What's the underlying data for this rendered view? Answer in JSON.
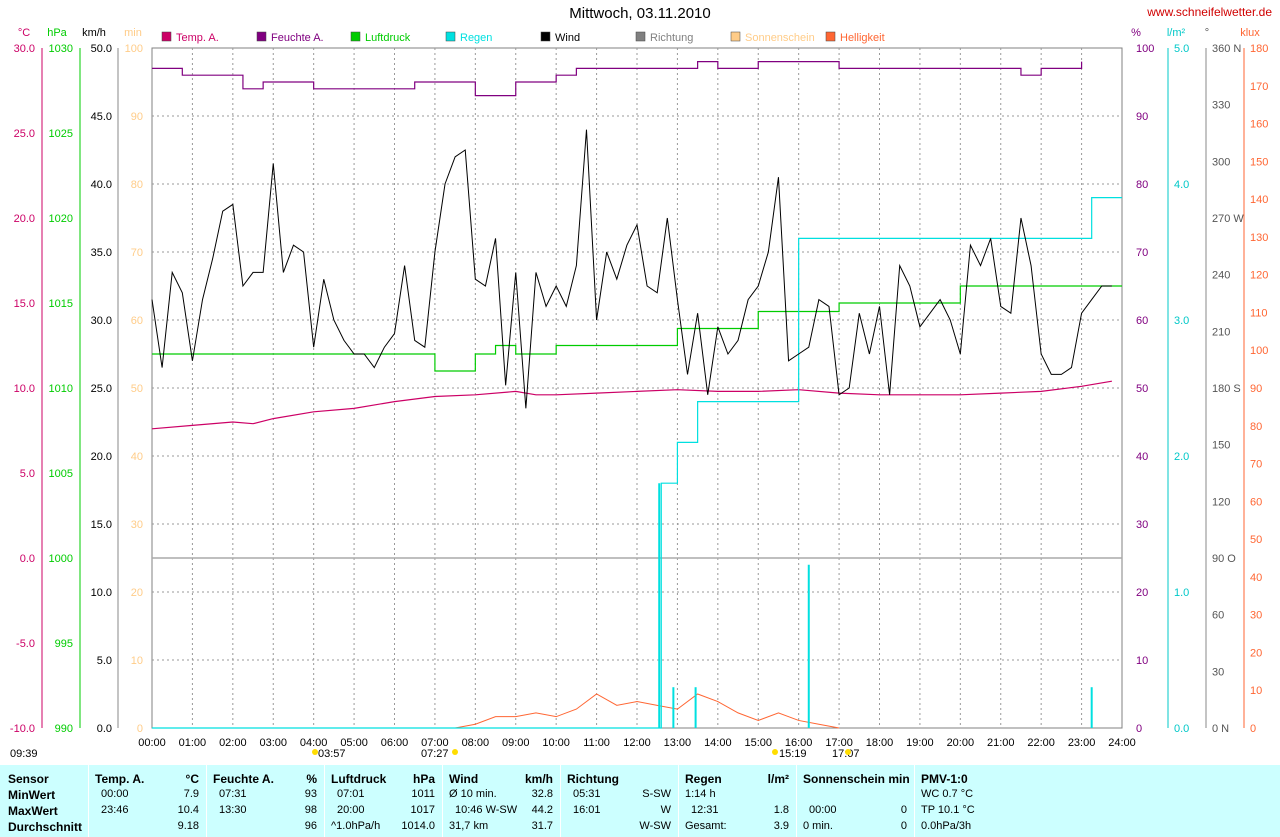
{
  "title": "Mittwoch, 03.11.2010",
  "website": "www.schneifelwetter.de",
  "colors": {
    "temp": "#cc0066",
    "feuchte": "#800080",
    "luftdruck": "#00cc00",
    "regen": "#00e0e0",
    "wind": "#000000",
    "richtung": "#808080",
    "sonnenschein": "#ffcc88",
    "helligkeit": "#ff6633"
  },
  "units_left": {
    "temp": "°C",
    "hpa": "hPa",
    "kmh": "km/h",
    "min": "min"
  },
  "units_right": {
    "pct": "%",
    "lm2": "l/m²",
    "deg": "°",
    "klux": "klux"
  },
  "legend": [
    {
      "label": "Temp. A.",
      "color": "#cc0066"
    },
    {
      "label": "Feuchte A.",
      "color": "#800080"
    },
    {
      "label": "Luftdruck",
      "color": "#00cc00"
    },
    {
      "label": "Regen",
      "color": "#00e0e0"
    },
    {
      "label": "Wind",
      "color": "#000000"
    },
    {
      "label": "Richtung",
      "color": "#808080"
    },
    {
      "label": "Sonnenschein",
      "color": "#ffcc88"
    },
    {
      "label": "Helligkeit",
      "color": "#ff6633"
    }
  ],
  "axes": {
    "temp": [
      "30.0",
      "25.0",
      "20.0",
      "15.0",
      "10.0",
      "5.0",
      "0.0",
      "-5.0",
      "-10.0"
    ],
    "hpa": [
      "1030",
      "1025",
      "1020",
      "1015",
      "1010",
      "1005",
      "1000",
      "995",
      "990"
    ],
    "kmh": [
      "50.0",
      "45.0",
      "40.0",
      "35.0",
      "30.0",
      "25.0",
      "20.0",
      "15.0",
      "10.0",
      "5.0",
      "0.0"
    ],
    "min": [
      "100",
      "90",
      "80",
      "70",
      "60",
      "50",
      "40",
      "30",
      "20",
      "10",
      "0"
    ],
    "pct": [
      "100",
      "90",
      "80",
      "70",
      "60",
      "50",
      "40",
      "30",
      "20",
      "10",
      "0"
    ],
    "lm2": [
      "5.0",
      "4.0",
      "3.0",
      "2.0",
      "1.0",
      "0.0"
    ],
    "deg": [
      "360 N",
      "330",
      "300",
      "270 W",
      "240",
      "210",
      "180 S",
      "150",
      "120",
      "90 O",
      "60",
      "30",
      "0 N"
    ],
    "klux": [
      "180",
      "170",
      "160",
      "150",
      "140",
      "130",
      "120",
      "110",
      "100",
      "90",
      "80",
      "70",
      "60",
      "50",
      "40",
      "30",
      "20",
      "10",
      "0"
    ],
    "x": [
      "00:00",
      "01:00",
      "02:00",
      "03:00",
      "04:00",
      "05:00",
      "06:00",
      "07:00",
      "08:00",
      "09:00",
      "10:00",
      "11:00",
      "12:00",
      "13:00",
      "14:00",
      "15:00",
      "16:00",
      "17:00",
      "18:00",
      "19:00",
      "20:00",
      "21:00",
      "22:00",
      "23:00",
      "24:00"
    ]
  },
  "markers": {
    "left_time": "09:39",
    "m1": "03:57",
    "m2": "07:27",
    "m3": "15:19",
    "m4": "17:07"
  },
  "chart_data": {
    "type": "line",
    "x_unit": "hour",
    "series": [
      {
        "name": "Temp. A.",
        "unit": "°C",
        "x": [
          0,
          1,
          2,
          2.5,
          3,
          4,
          5,
          6,
          7,
          8,
          9,
          9.5,
          10,
          11,
          12,
          13,
          14,
          15,
          16,
          17,
          18,
          19,
          20,
          21,
          22,
          23,
          23.75
        ],
        "values": [
          7.6,
          7.8,
          8.0,
          7.9,
          8.2,
          8.6,
          8.8,
          9.2,
          9.5,
          9.6,
          9.8,
          9.6,
          9.6,
          9.7,
          9.8,
          9.9,
          9.8,
          9.8,
          9.9,
          9.7,
          9.6,
          9.6,
          9.6,
          9.7,
          9.8,
          10.1,
          10.4
        ]
      },
      {
        "name": "Feuchte A.",
        "unit": "%",
        "x": [
          0,
          0.75,
          1.5,
          2.25,
          2.75,
          3.5,
          4,
          5,
          6,
          6.5,
          7.5,
          8,
          8.5,
          9,
          10,
          10.5,
          11,
          12,
          13,
          13.5,
          14,
          15,
          16,
          17,
          18,
          19,
          20,
          21,
          21.5,
          22,
          23
        ],
        "values": [
          97,
          96,
          96,
          94,
          95,
          95,
          94,
          94,
          94,
          95,
          95,
          93,
          93,
          95,
          96,
          97,
          97,
          97,
          97,
          98,
          97,
          98,
          98,
          97,
          97,
          97,
          97,
          97,
          96,
          97,
          98
        ]
      },
      {
        "name": "Luftdruck",
        "unit": "hPa",
        "x": [
          0,
          1,
          2,
          3,
          4,
          5,
          6,
          7,
          7.5,
          8,
          8.5,
          9,
          10,
          11,
          12,
          13,
          14,
          15,
          16,
          17,
          18,
          19,
          20,
          21,
          22,
          23,
          24
        ],
        "values": [
          1012,
          1012,
          1012,
          1012,
          1012,
          1012,
          1012,
          1011,
          1011,
          1012,
          1012.5,
          1012,
          1012.5,
          1012.5,
          1012.5,
          1013.5,
          1013.5,
          1014.5,
          1014.5,
          1015,
          1015,
          1015,
          1016,
          1016,
          1016,
          1016,
          1016
        ]
      },
      {
        "name": "Wind",
        "unit": "km/h",
        "x": [
          0,
          0.25,
          0.5,
          0.75,
          1,
          1.25,
          1.5,
          1.75,
          2,
          2.25,
          2.5,
          2.75,
          3,
          3.25,
          3.5,
          3.75,
          4,
          4.25,
          4.5,
          4.75,
          5,
          5.25,
          5.5,
          5.75,
          6,
          6.25,
          6.5,
          6.75,
          7,
          7.25,
          7.5,
          7.75,
          8,
          8.25,
          8.5,
          8.75,
          9,
          9.25,
          9.5,
          9.75,
          10,
          10.25,
          10.5,
          10.75,
          11,
          11.25,
          11.5,
          11.75,
          12,
          12.25,
          12.5,
          12.75,
          13,
          13.25,
          13.5,
          13.75,
          14,
          14.25,
          14.5,
          14.75,
          15,
          15.25,
          15.5,
          15.75,
          16,
          16.25,
          16.5,
          16.75,
          17,
          17.25,
          17.5,
          17.75,
          18,
          18.25,
          18.5,
          18.75,
          19,
          19.25,
          19.5,
          19.75,
          20,
          20.25,
          20.5,
          20.75,
          21,
          21.25,
          21.5,
          21.75,
          22,
          22.25,
          22.5,
          22.75,
          23,
          23.25,
          23.5,
          23.75
        ],
        "values": [
          31.5,
          26.5,
          33.5,
          32,
          27,
          31.5,
          34.5,
          38,
          38.5,
          32.5,
          33.5,
          33.5,
          41.5,
          33.5,
          35.5,
          35,
          28,
          33,
          30,
          28.5,
          27.5,
          27.5,
          26.5,
          28,
          29,
          34,
          28.5,
          28,
          35,
          40,
          42,
          42.5,
          33,
          32.5,
          36,
          25.2,
          33.5,
          23.5,
          33.5,
          31,
          32.5,
          31,
          34,
          44,
          30,
          35,
          33,
          35.5,
          37,
          32.5,
          32,
          37.5,
          31.5,
          26,
          30.5,
          24.5,
          29.5,
          27.5,
          28.5,
          31.5,
          32.5,
          35,
          40.5,
          27,
          27.5,
          28,
          31.5,
          31,
          24.5,
          25,
          30.5,
          27.5,
          31,
          24.5,
          34,
          32.5,
          29.5,
          30.5,
          31.5,
          30,
          27.5,
          35.5,
          34,
          36,
          31,
          30.5,
          37.5,
          34,
          27.5,
          26,
          26,
          26.5,
          30.5,
          31.5,
          32.5,
          32.5
        ]
      },
      {
        "name": "Regen",
        "unit": "l/m²",
        "x": [
          0,
          12.5,
          12.6,
          12.75,
          13,
          13.25,
          13.5,
          14,
          15,
          15.9,
          16,
          16.25,
          22.75,
          23,
          23.25,
          24
        ],
        "values": [
          0,
          0,
          1.8,
          1.8,
          2.1,
          2.1,
          2.4,
          2.4,
          2.4,
          2.4,
          3.6,
          3.6,
          3.6,
          3.6,
          3.9,
          3.9
        ]
      },
      {
        "name": "Helligkeit",
        "unit": "klux",
        "x": [
          7.5,
          8,
          8.5,
          9,
          9.5,
          10,
          10.5,
          11,
          11.5,
          12,
          12.5,
          13,
          13.5,
          14,
          14.5,
          15,
          15.5,
          16,
          16.5,
          17
        ],
        "values": [
          0,
          1,
          3,
          3,
          4,
          3,
          5,
          9,
          6,
          7,
          6,
          5,
          9,
          7,
          4,
          2,
          4,
          2,
          1,
          0
        ]
      }
    ],
    "ylim_left_temp": [
      -10,
      30
    ],
    "ylim_left_hpa": [
      990,
      1030
    ],
    "ylim_left_kmh": [
      0,
      50
    ],
    "ylim_right_pct": [
      0,
      100
    ],
    "ylim_right_lm2": [
      0,
      5
    ],
    "ylim_right_klux": [
      0,
      180
    ],
    "xlim": [
      0,
      24
    ],
    "grid": true
  },
  "table": {
    "rows": [
      "Sensor",
      "MinWert",
      "MaxWert",
      "Durchschnitt"
    ],
    "temp": {
      "h": "Temp. A.",
      "u": "°C",
      "v": [
        [
          "00:00",
          "7.9"
        ],
        [
          "23:46",
          "10.4"
        ],
        [
          "",
          "9.18"
        ]
      ]
    },
    "feuchte": {
      "h": "Feuchte A.",
      "u": "%",
      "v": [
        [
          "07:31",
          "93"
        ],
        [
          "13:30",
          "98"
        ],
        [
          "",
          "96"
        ]
      ]
    },
    "luftdruck": {
      "h": "Luftdruck",
      "u": "hPa",
      "v": [
        [
          "07:01",
          "1011"
        ],
        [
          "20:00",
          "1017"
        ],
        [
          "^1.0hPa/h",
          "1014.0"
        ]
      ]
    },
    "wind": {
      "h": "Wind",
      "u": "km/h",
      "v": [
        [
          "Ø 10 min.",
          "32.8"
        ],
        [
          "10:46  W-SW",
          "44.2"
        ],
        [
          "31,7 km",
          "31.7"
        ]
      ]
    },
    "richtung": {
      "h": "Richtung",
      "v": [
        [
          "05:31",
          "S-SW"
        ],
        [
          "16:01",
          "W"
        ],
        [
          "",
          "W-SW"
        ]
      ]
    },
    "regen": {
      "h": "Regen",
      "u": "l/m²",
      "v": [
        [
          "1:14 h",
          ""
        ],
        [
          "12:31",
          "1.8"
        ],
        [
          "Gesamt:",
          "3.9"
        ]
      ]
    },
    "sonne": {
      "h": "Sonnenschein min",
      "v": [
        [
          "",
          ""
        ],
        [
          "00:00",
          "0"
        ],
        [
          "0 min.",
          "0"
        ]
      ]
    },
    "pmv": {
      "h": "PMV-1:0",
      "v": [
        "WC 0.7 °C",
        "TP 10.1 °C",
        "0.0hPa/3h"
      ]
    }
  }
}
